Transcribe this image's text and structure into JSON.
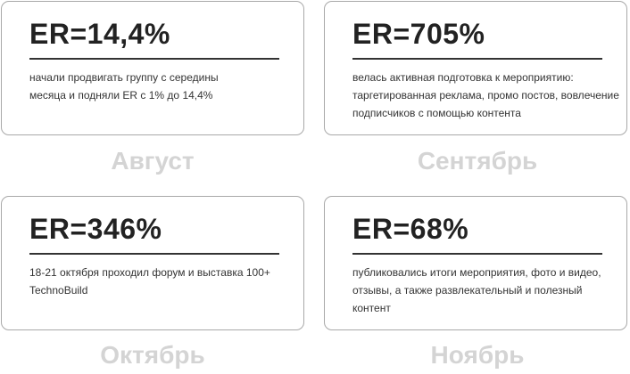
{
  "cards": [
    {
      "title": "ER=14,4%",
      "description": "начали продвигать группу с середины месяца и подняли ER с 1% до 14,4%",
      "month": "Август"
    },
    {
      "title": "ER=705%",
      "description": "велась активная подготовка к мероприятию: таргетированная реклама, промо постов, вовлечение подписчиков с помощью контента",
      "month": "Сентябрь"
    },
    {
      "title": "ER=346%",
      "description": "18-21 октября проходил форум и выставка 100+ TechnoBuild",
      "month": "Октябрь"
    },
    {
      "title": "ER=68%",
      "description": "публиковались итоги мероприятия, фото и видео, отзывы, а также развлекательный и полезный контент",
      "month": "Ноябрь"
    }
  ]
}
